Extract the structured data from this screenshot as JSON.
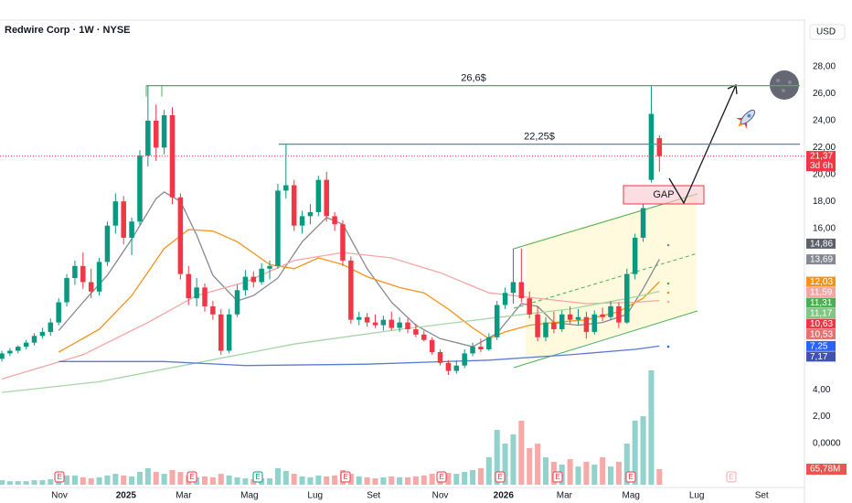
{
  "chart_data": {
    "type": "candlestick",
    "title": "Redwire Corp · 1W · NYSE",
    "currency": "USD",
    "up_color": "#089981",
    "down_color": "#f23645",
    "xlim": [
      -0.225,
      98.87
    ],
    "ylim": [
      -3.26,
      31.47
    ],
    "xticks": [
      {
        "value": 7.1,
        "label": "Nov"
      },
      {
        "value": 15.3,
        "label": "2025"
      },
      {
        "value": 22.4,
        "label": "Mar"
      },
      {
        "value": 30.5,
        "label": "Mag"
      },
      {
        "value": 38.6,
        "label": "Lug"
      },
      {
        "value": 45.8,
        "label": "Set"
      },
      {
        "value": 54.0,
        "label": "Nov"
      },
      {
        "value": 61.8,
        "label": "2026"
      },
      {
        "value": 69.3,
        "label": "Mar"
      },
      {
        "value": 77.5,
        "label": "Mag"
      },
      {
        "value": 85.6,
        "label": "Lug"
      },
      {
        "value": 93.6,
        "label": "Set"
      }
    ],
    "yticks": [
      {
        "value": 28,
        "label": "28,00"
      },
      {
        "value": 26,
        "label": "26,00"
      },
      {
        "value": 24,
        "label": "24,00"
      },
      {
        "value": 22,
        "label": "22,00"
      },
      {
        "value": 20,
        "label": "20,00"
      },
      {
        "value": 18,
        "label": "18,00"
      },
      {
        "value": 16,
        "label": "16,00"
      },
      {
        "value": 4,
        "label": "4,00"
      },
      {
        "value": 2,
        "label": "2,00"
      },
      {
        "value": 0,
        "label": "0,0000"
      }
    ],
    "open": [
      6.3,
      6.7,
      6.9,
      7.2,
      7.5,
      8.0,
      8.3,
      9.0,
      10.5,
      12.3,
      13.2,
      12.0,
      11.3,
      13.5,
      16.2,
      18.0,
      15.3,
      16.5,
      21.4,
      24.0,
      22.0,
      24.4,
      18.3,
      12.6,
      10.8,
      11.6,
      10.2,
      9.6,
      6.9,
      9.6,
      11.4,
      12.4,
      12.0,
      13.0,
      13.2,
      18.8,
      19.2,
      16.2,
      16.9,
      17.2,
      19.6,
      16.9,
      16.3,
      13.6,
      9.2,
      9.4,
      9.0,
      8.8,
      9.2,
      8.6,
      9.0,
      8.5,
      8.1,
      7.7,
      6.8,
      6.0,
      5.4,
      5.8,
      6.7,
      7.2,
      7.0,
      7.9,
      10.3,
      11.2,
      12.0,
      10.8,
      9.6,
      7.9,
      9.0,
      8.5,
      9.6,
      9.2,
      9.4,
      8.3,
      9.6,
      9.4,
      10.2,
      9.0,
      12.6,
      15.3,
      19.6,
      22.7
    ],
    "high": [
      6.9,
      7.1,
      7.3,
      7.7,
      8.2,
      8.6,
      9.3,
      10.8,
      12.6,
      13.6,
      14.2,
      13.0,
      13.8,
      16.5,
      18.6,
      18.4,
      16.8,
      21.8,
      26.6,
      25.2,
      24.8,
      25.0,
      18.6,
      13.2,
      12.3,
      11.9,
      10.6,
      10.0,
      10.0,
      11.8,
      12.9,
      12.8,
      13.4,
      13.6,
      19.3,
      22.2,
      19.6,
      17.3,
      17.8,
      19.9,
      20.2,
      17.2,
      16.6,
      13.9,
      9.8,
      9.7,
      9.6,
      9.5,
      9.8,
      9.4,
      9.3,
      8.9,
      8.4,
      7.9,
      7.0,
      6.2,
      6.2,
      7.0,
      7.5,
      7.8,
      8.2,
      10.6,
      11.6,
      14.5,
      14.5,
      11.3,
      10.2,
      9.4,
      9.8,
      9.9,
      10.2,
      10.0,
      9.8,
      9.9,
      10.1,
      10.6,
      10.5,
      13.0,
      15.6,
      17.8,
      26.6,
      22.9
    ],
    "low": [
      6.1,
      6.5,
      6.7,
      7.0,
      7.3,
      7.8,
      8.0,
      8.8,
      10.2,
      11.8,
      11.5,
      10.8,
      11.0,
      13.2,
      15.6,
      14.8,
      14.0,
      16.2,
      20.6,
      21.0,
      21.5,
      17.8,
      12.2,
      10.3,
      10.2,
      9.8,
      9.2,
      6.6,
      6.7,
      9.4,
      11.0,
      11.6,
      11.8,
      12.2,
      13.0,
      18.2,
      15.8,
      15.6,
      16.3,
      16.9,
      16.5,
      15.8,
      13.2,
      8.9,
      8.8,
      8.7,
      8.6,
      8.4,
      8.4,
      8.3,
      8.2,
      7.9,
      7.6,
      6.6,
      5.8,
      5.1,
      5.2,
      5.6,
      6.5,
      6.8,
      6.9,
      7.7,
      10.0,
      10.4,
      10.5,
      9.3,
      7.6,
      7.6,
      8.2,
      8.3,
      8.9,
      8.8,
      7.8,
      8.1,
      9.1,
      9.2,
      8.6,
      8.9,
      12.2,
      15.0,
      19.4,
      20.2
    ],
    "close": [
      6.7,
      6.9,
      7.2,
      7.5,
      8.0,
      8.3,
      9.0,
      10.5,
      12.3,
      13.2,
      12.0,
      11.3,
      13.5,
      16.2,
      18.0,
      15.3,
      16.5,
      21.4,
      24.0,
      22.0,
      24.4,
      18.3,
      12.6,
      10.8,
      11.6,
      10.2,
      9.6,
      6.9,
      9.6,
      11.4,
      12.4,
      12.0,
      13.0,
      13.2,
      18.8,
      19.2,
      16.2,
      16.9,
      17.2,
      19.6,
      16.9,
      16.3,
      13.6,
      9.2,
      9.4,
      9.0,
      8.8,
      9.2,
      8.6,
      9.0,
      8.5,
      8.1,
      7.7,
      6.8,
      6.0,
      5.4,
      5.8,
      6.7,
      7.2,
      7.0,
      7.9,
      10.3,
      11.2,
      12.0,
      10.8,
      9.6,
      7.9,
      9.0,
      8.5,
      9.6,
      9.2,
      9.4,
      8.3,
      9.6,
      9.4,
      10.2,
      9.0,
      12.6,
      15.3,
      17.5,
      24.5,
      21.37
    ],
    "volume": {
      "up_color": "#26a69a",
      "down_color": "#ef5350",
      "values": [
        19,
        15,
        15,
        15,
        19,
        19,
        23,
        31,
        39,
        39,
        31,
        27,
        31,
        39,
        46,
        39,
        35,
        54,
        70,
        54,
        46,
        62,
        54,
        39,
        31,
        35,
        31,
        46,
        39,
        31,
        27,
        23,
        27,
        27,
        70,
        58,
        46,
        35,
        31,
        39,
        35,
        39,
        62,
        46,
        35,
        31,
        27,
        31,
        35,
        31,
        31,
        35,
        39,
        46,
        54,
        50,
        46,
        54,
        62,
        70,
        116,
        232,
        174,
        213,
        271,
        155,
        174,
        116,
        97,
        85,
        108,
        77,
        97,
        85,
        116,
        77,
        97,
        174,
        271,
        290,
        484,
        65.78
      ],
      "last_label": "65,78M"
    },
    "moving_averages": [
      {
        "color": "#868993",
        "x": [
          7,
          10,
          13,
          16,
          19,
          20,
          22,
          24,
          26,
          29,
          31,
          34,
          37,
          40,
          42,
          45,
          48,
          51,
          54,
          58,
          61,
          64,
          66,
          68,
          71,
          74,
          77,
          79,
          81
        ],
        "values": [
          8.4,
          10.5,
          12.5,
          15.2,
          18.2,
          18.7,
          18.0,
          15.5,
          12.5,
          10.6,
          11.0,
          12.3,
          15.0,
          16.8,
          16.3,
          13.0,
          10.5,
          8.8,
          7.8,
          7.2,
          8.2,
          10.4,
          10.2,
          9.0,
          8.8,
          9.0,
          9.6,
          11.5,
          13.69
        ]
      },
      {
        "color": "#f7931a",
        "x": [
          7,
          12,
          16,
          20,
          23,
          26,
          29,
          33,
          36,
          39,
          42,
          45,
          49,
          52,
          55,
          58,
          60,
          62,
          65,
          68,
          72,
          76,
          79,
          81
        ],
        "values": [
          6.8,
          8.5,
          11.0,
          14.5,
          15.9,
          15.8,
          15.0,
          13.3,
          13.0,
          13.8,
          13.3,
          12.4,
          11.6,
          11.2,
          10.0,
          8.6,
          7.8,
          8.3,
          8.8,
          9.0,
          9.2,
          9.8,
          10.8,
          12.03
        ]
      },
      {
        "color": "#f4a6a6",
        "x": [
          0,
          10,
          18,
          24,
          30,
          36,
          42,
          48,
          54,
          60,
          66,
          72,
          78,
          81
        ],
        "values": [
          4.8,
          6.6,
          9.0,
          11.0,
          12.0,
          13.6,
          14.2,
          13.8,
          12.7,
          11.2,
          10.8,
          10.4,
          10.5,
          10.63
        ]
      },
      {
        "color": "#a5d6a7",
        "x": [
          0,
          12,
          24,
          36,
          48,
          60,
          70,
          78,
          81
        ],
        "values": [
          3.8,
          4.6,
          6.0,
          7.4,
          8.4,
          9.3,
          10.0,
          10.9,
          11.31
        ]
      },
      {
        "color": "#5b7bd5",
        "x": [
          7,
          20,
          30,
          45,
          60,
          70,
          78,
          81
        ],
        "values": [
          6.1,
          6.1,
          5.8,
          5.9,
          6.2,
          6.6,
          7.0,
          7.25
        ]
      }
    ],
    "price_tags": [
      {
        "label": "21,37",
        "sublabel": "3d 6h",
        "value": 21.37,
        "color": "#f23645"
      },
      {
        "label": "14,86",
        "value": 14.86,
        "color": "#5d606b"
      },
      {
        "label": "13,69",
        "value": 13.69,
        "color": "#868993"
      },
      {
        "label": "12,03",
        "value": 12.03,
        "color": "#f7931a"
      },
      {
        "label": "11,59",
        "value": 11.59,
        "color": "#f4a6a6"
      },
      {
        "label": "11,31",
        "value": 11.31,
        "color": "#4caf50"
      },
      {
        "label": "11,17",
        "value": 11.17,
        "color": "#81c784"
      },
      {
        "label": "10,63",
        "value": 10.63,
        "color": "#f23645"
      },
      {
        "label": "10,53",
        "value": 10.53,
        "color": "#e57373"
      },
      {
        "label": "7,25",
        "value": 7.25,
        "color": "#2962ff"
      },
      {
        "label": "7,17",
        "value": 7.17,
        "color": "#3f51b5"
      }
    ],
    "annotations": [
      {
        "label": "26,6$",
        "value": 26.6
      },
      {
        "label": "22,25$",
        "value": 22.25
      }
    ],
    "gap_label": "GAP",
    "earnings": [
      {
        "label": "E",
        "color": "#f23645"
      },
      {
        "label": "E",
        "color": "#f23645"
      },
      {
        "label": "E",
        "color": "#089981"
      },
      {
        "label": "E",
        "color": "#f23645"
      },
      {
        "label": "E",
        "color": "#f23645"
      },
      {
        "label": "E",
        "color": "#f23645"
      },
      {
        "label": "E",
        "color": "#f23645"
      },
      {
        "label": "E",
        "color": "#f23645"
      },
      {
        "label": "E",
        "color": "#f7a8b0"
      }
    ]
  }
}
